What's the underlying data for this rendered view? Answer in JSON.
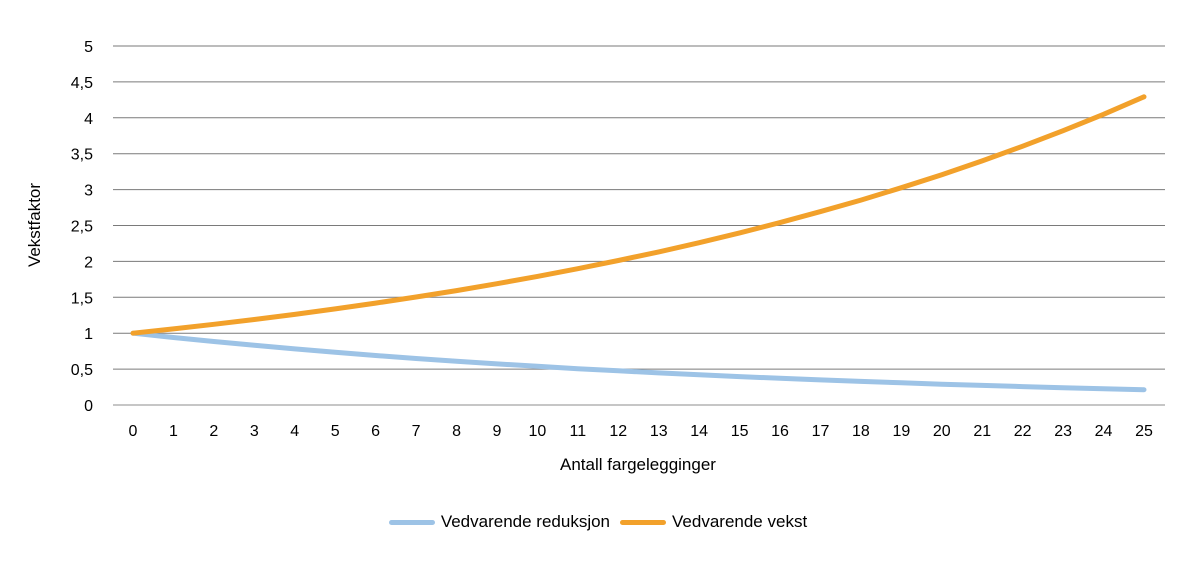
{
  "chart_data": {
    "type": "line",
    "title": "",
    "xlabel": "Antall fargelegginger",
    "ylabel": "Vekstfaktor",
    "ylim": [
      0,
      5
    ],
    "grid": true,
    "legend_position": "bottom-center",
    "x": [
      0,
      1,
      2,
      3,
      4,
      5,
      6,
      7,
      8,
      9,
      10,
      11,
      12,
      13,
      14,
      15,
      16,
      17,
      18,
      19,
      20,
      21,
      22,
      23,
      24,
      25
    ],
    "x_tick_labels": [
      "0",
      "1",
      "2",
      "3",
      "4",
      "5",
      "6",
      "7",
      "8",
      "9",
      "10",
      "11",
      "12",
      "13",
      "14",
      "15",
      "16",
      "17",
      "18",
      "19",
      "20",
      "21",
      "22",
      "23",
      "24",
      "25"
    ],
    "y_ticks": [
      0,
      0.5,
      1,
      1.5,
      2,
      2.5,
      3,
      3.5,
      4,
      4.5,
      5
    ],
    "y_tick_labels": [
      "0",
      "0,5",
      "1",
      "1,5",
      "2",
      "2,5",
      "3",
      "3,5",
      "4",
      "4,5",
      "5"
    ],
    "series": [
      {
        "name": "Vedvarende reduksjon",
        "color": "#9dc3e6",
        "values": [
          1.0,
          0.94,
          0.884,
          0.831,
          0.781,
          0.734,
          0.69,
          0.648,
          0.61,
          0.573,
          0.539,
          0.506,
          0.476,
          0.447,
          0.421,
          0.395,
          0.372,
          0.349,
          0.328,
          0.309,
          0.29,
          0.273,
          0.256,
          0.241,
          0.227,
          0.213
        ]
      },
      {
        "name": "Vedvarende vekst",
        "color": "#f2a12b",
        "values": [
          1.0,
          1.06,
          1.124,
          1.191,
          1.262,
          1.338,
          1.419,
          1.504,
          1.594,
          1.689,
          1.791,
          1.898,
          2.012,
          2.133,
          2.261,
          2.397,
          2.54,
          2.693,
          2.854,
          3.026,
          3.207,
          3.4,
          3.604,
          3.82,
          4.049,
          4.292
        ]
      }
    ]
  }
}
